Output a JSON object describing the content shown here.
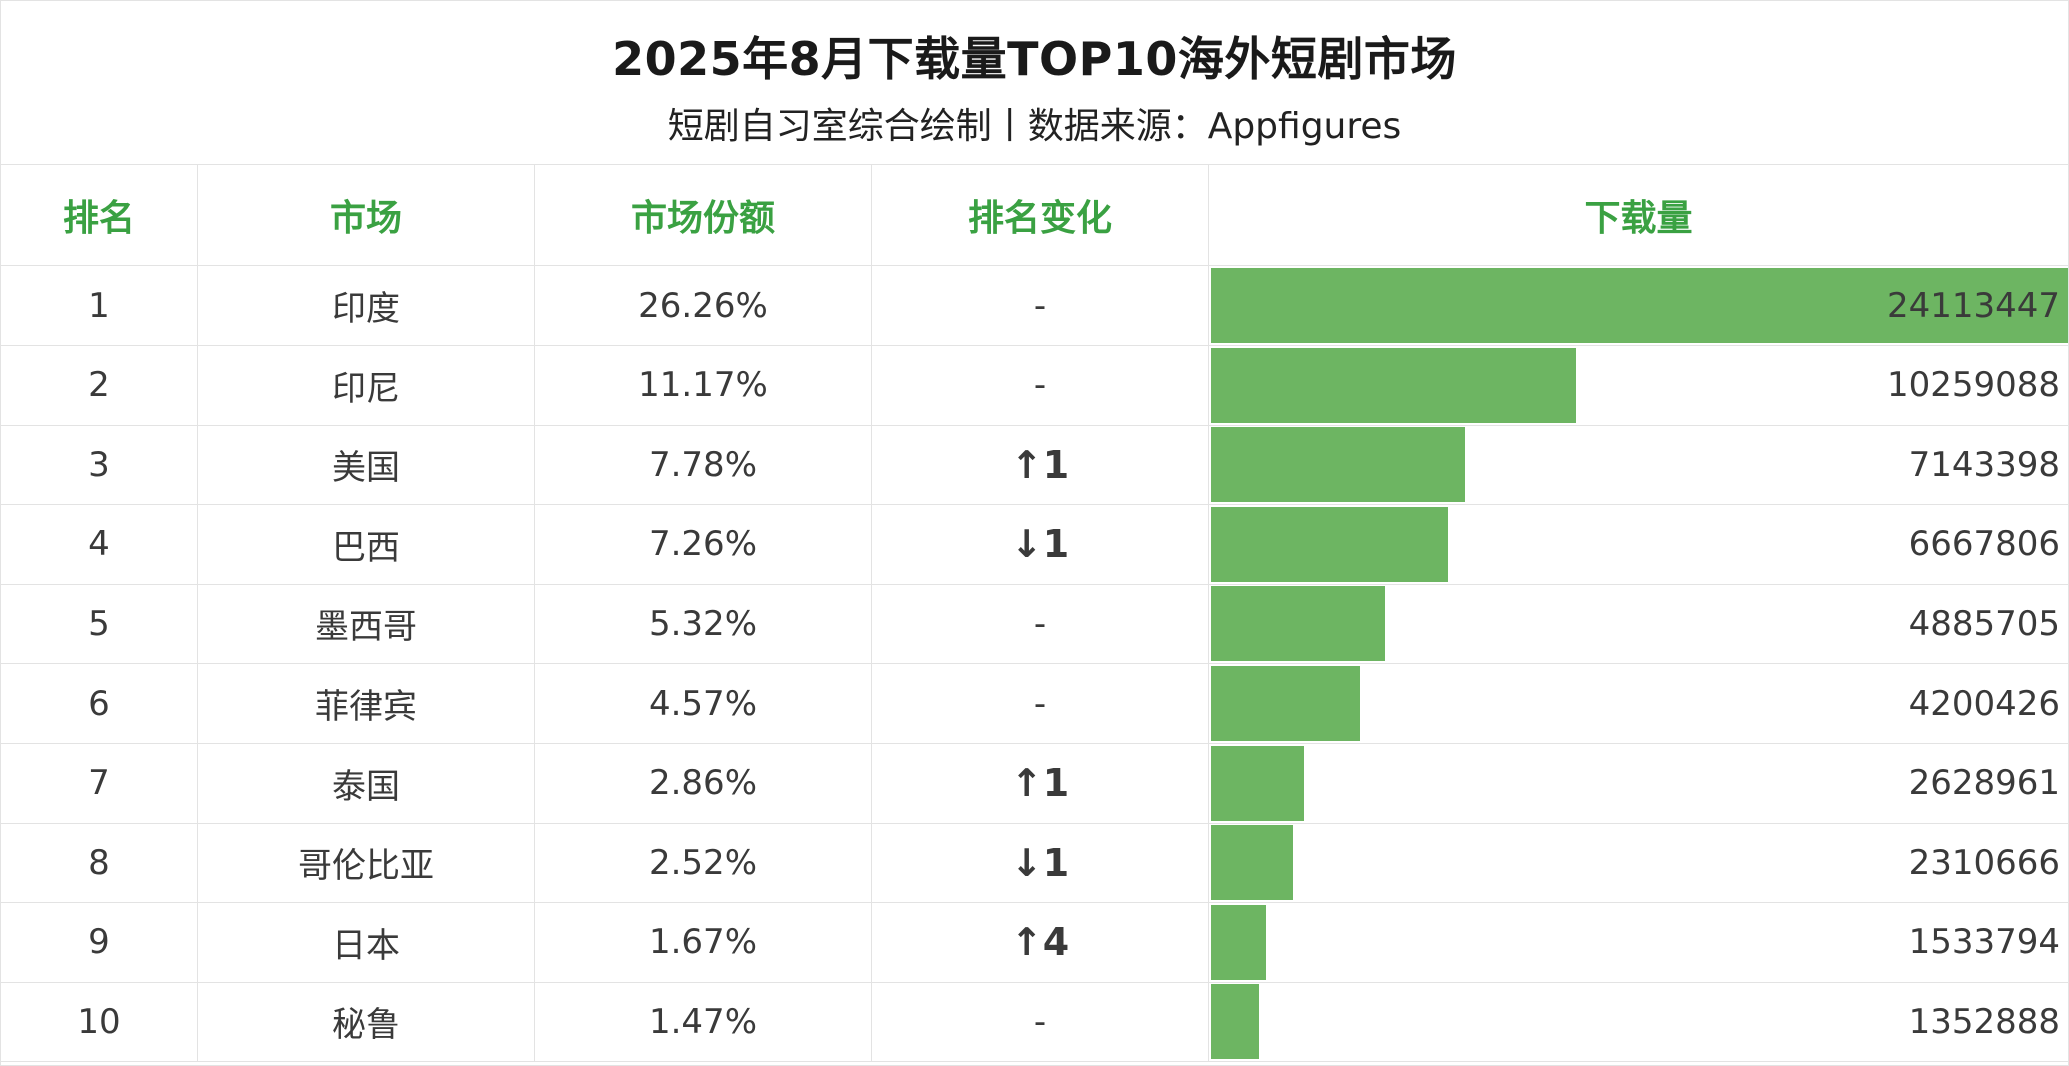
{
  "header": {
    "title": "2025年8月下载量TOP10海外短剧市场",
    "subtitle": "短剧自习室综合绘制丨数据来源：Appfigures"
  },
  "columns": {
    "rank": "排名",
    "market": "市场",
    "share": "市场份额",
    "change": "排名变化",
    "downloads": "下载量"
  },
  "colors": {
    "accent_green": "#3aa142",
    "bar_green": "#6db562",
    "up_red": "#e8141c",
    "down_green": "#2e9c3a"
  },
  "rows": [
    {
      "rank": "1",
      "market": "印度",
      "share": "26.26%",
      "change": "-",
      "dir": "none",
      "downloads": "24113447"
    },
    {
      "rank": "2",
      "market": "印尼",
      "share": "11.17%",
      "change": "-",
      "dir": "none",
      "downloads": "10259088"
    },
    {
      "rank": "3",
      "market": "美国",
      "share": "7.78%",
      "change": "↑1",
      "dir": "up",
      "downloads": "7143398"
    },
    {
      "rank": "4",
      "market": "巴西",
      "share": "7.26%",
      "change": "↓1",
      "dir": "down",
      "downloads": "6667806"
    },
    {
      "rank": "5",
      "market": "墨西哥",
      "share": "5.32%",
      "change": "-",
      "dir": "none",
      "downloads": "4885705"
    },
    {
      "rank": "6",
      "market": "菲律宾",
      "share": "4.57%",
      "change": "-",
      "dir": "none",
      "downloads": "4200426"
    },
    {
      "rank": "7",
      "market": "泰国",
      "share": "2.86%",
      "change": "↑1",
      "dir": "up",
      "downloads": "2628961"
    },
    {
      "rank": "8",
      "market": "哥伦比亚",
      "share": "2.52%",
      "change": "↓1",
      "dir": "down",
      "downloads": "2310666"
    },
    {
      "rank": "9",
      "market": "日本",
      "share": "1.67%",
      "change": "↑4",
      "dir": "up",
      "downloads": "1533794"
    },
    {
      "rank": "10",
      "market": "秘鲁",
      "share": "1.47%",
      "change": "-",
      "dir": "none",
      "downloads": "1352888"
    }
  ],
  "chart_data": {
    "type": "bar",
    "orientation": "horizontal",
    "title": "2025年8月下载量TOP10海外短剧市场",
    "subtitle": "短剧自习室综合绘制丨数据来源：Appfigures",
    "categories": [
      "印度",
      "印尼",
      "美国",
      "巴西",
      "墨西哥",
      "菲律宾",
      "泰国",
      "哥伦比亚",
      "日本",
      "秘鲁"
    ],
    "values": [
      24113447,
      10259088,
      7143398,
      6667806,
      4885705,
      4200426,
      2628961,
      2310666,
      1533794,
      1352888
    ],
    "xlim": [
      0,
      24113447
    ],
    "ylabel": "下载量"
  }
}
